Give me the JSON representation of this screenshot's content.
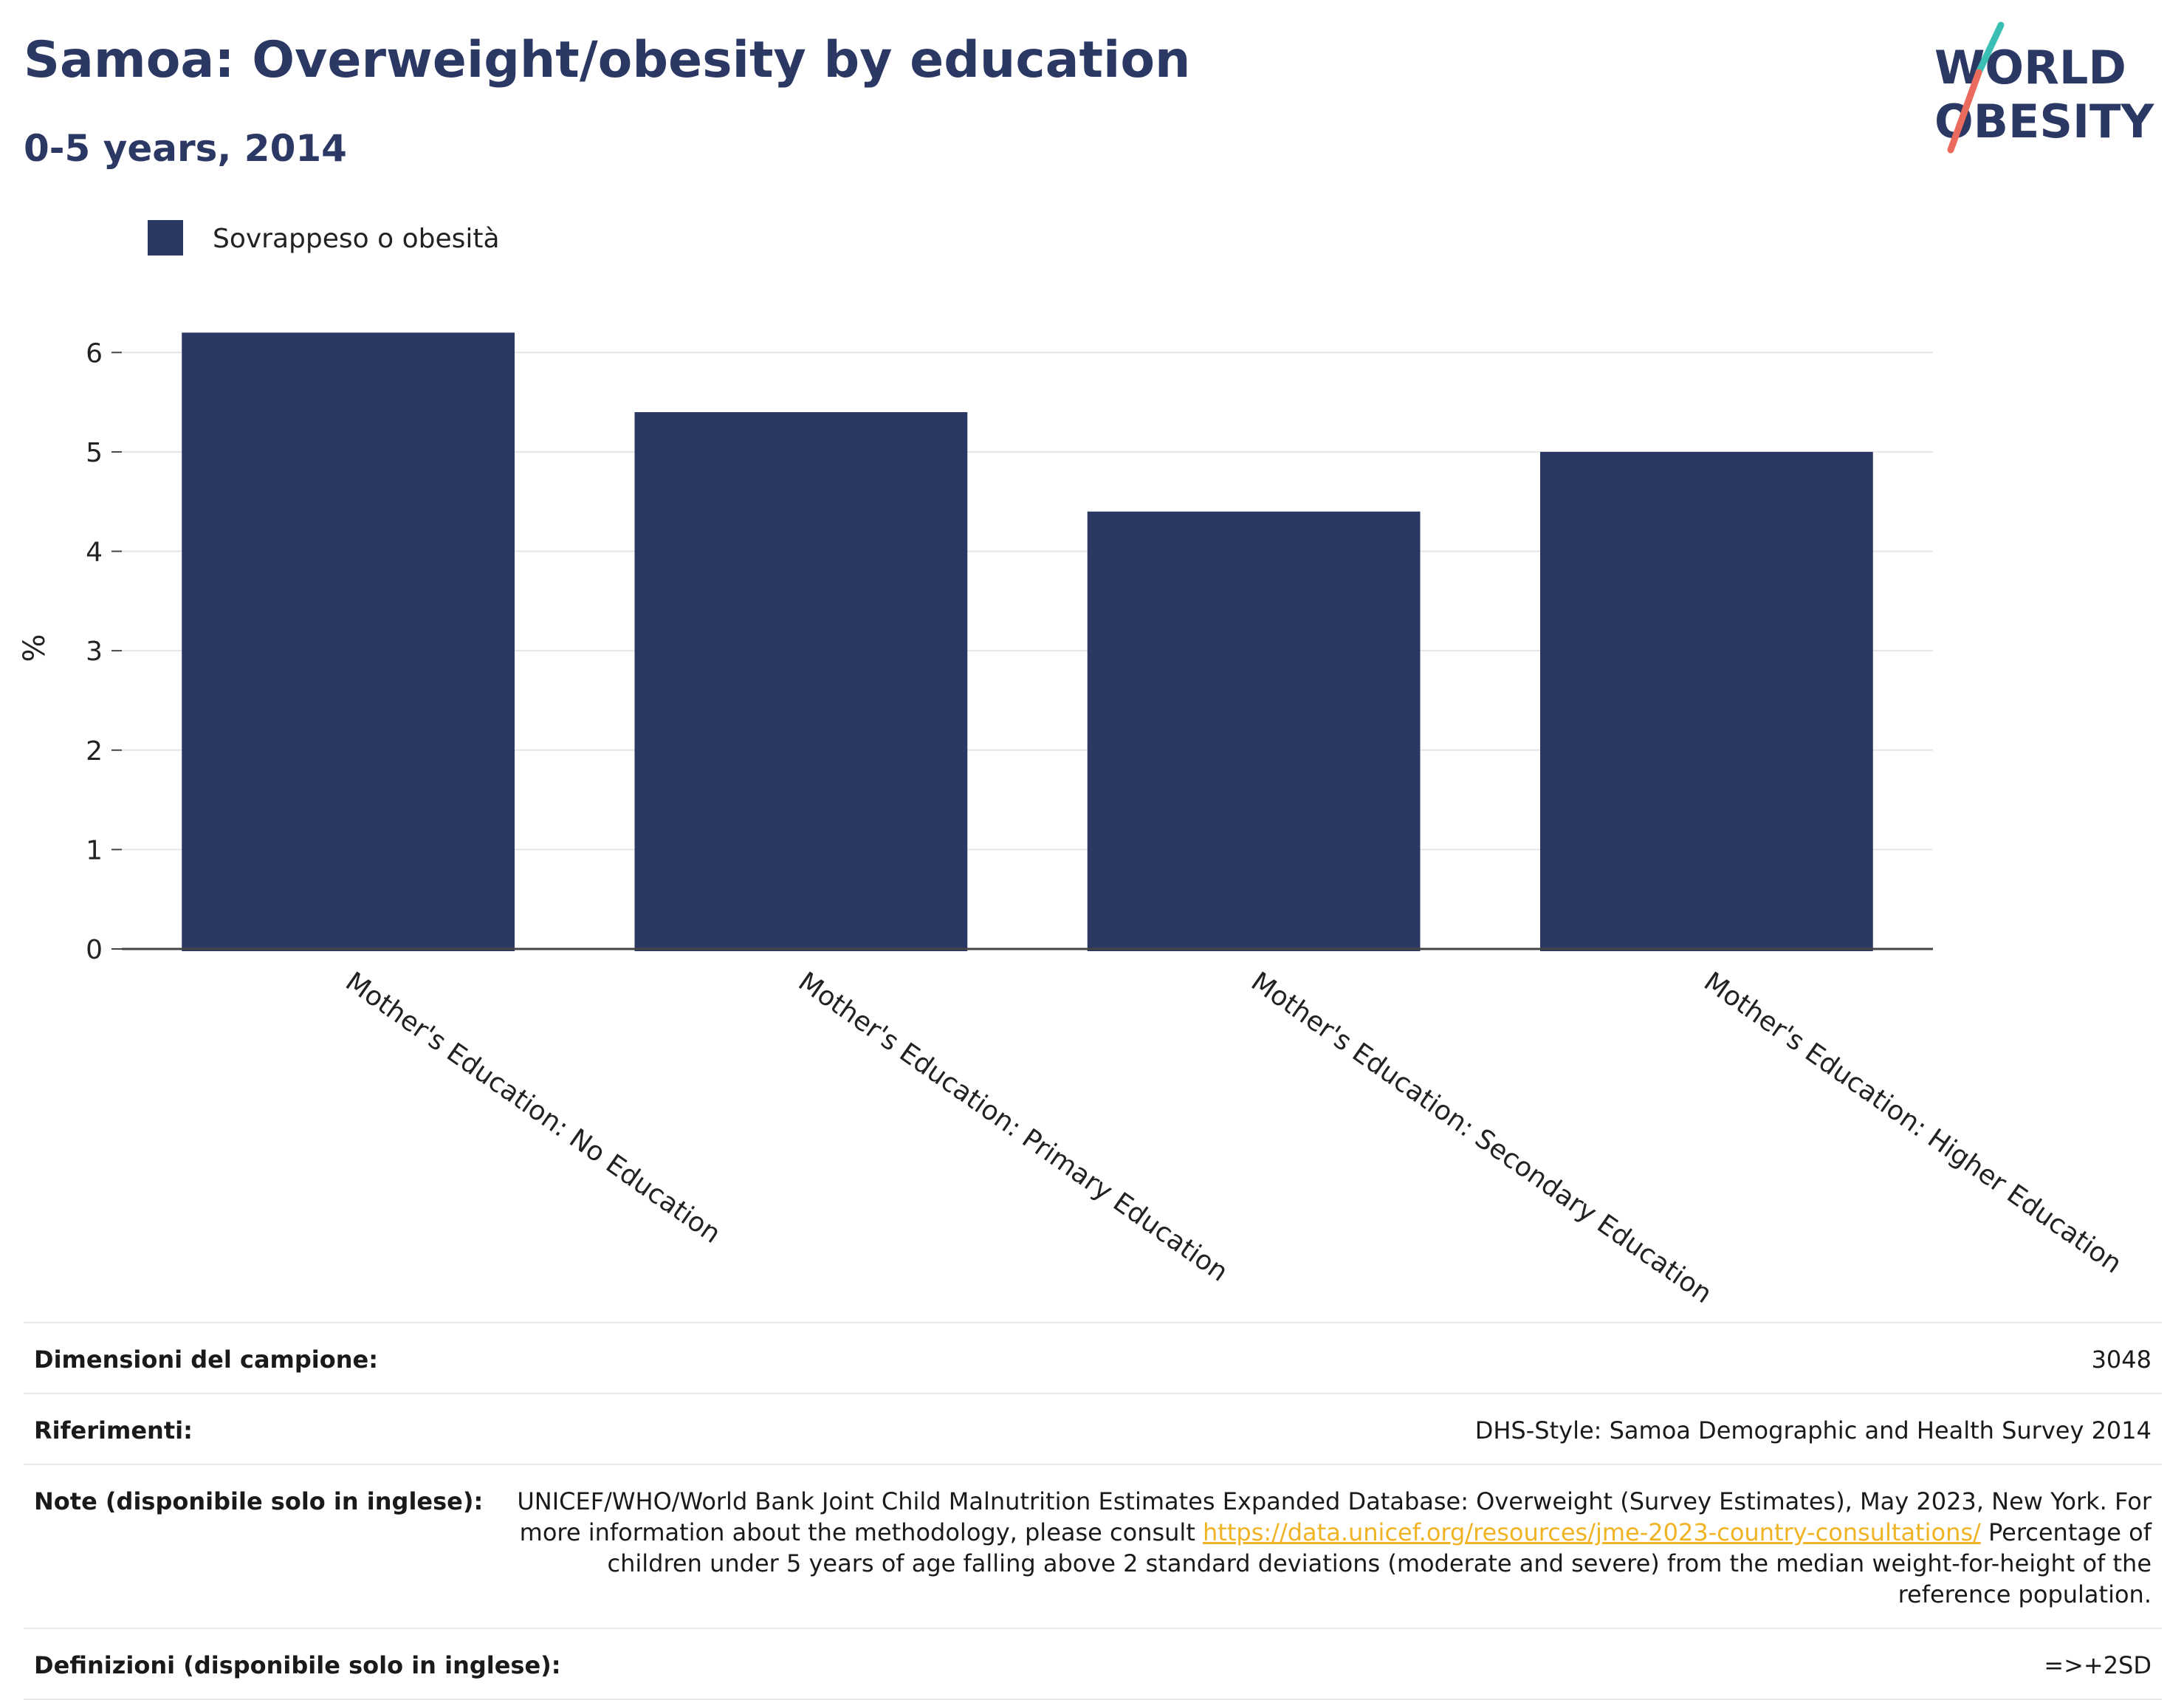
{
  "header": {
    "title": "Samoa: Overweight/obesity by education",
    "subtitle": "0-5 years, 2014"
  },
  "logo": {
    "text_line1": "WORLD",
    "text_line2": "OBESITY",
    "colors": {
      "text": "#2b3864",
      "slash_top": "#3bbfb4",
      "slash_bottom": "#ea6a5e"
    }
  },
  "colors": {
    "bar": "#2b3864",
    "grid": "#e6e6e6",
    "axis": "#444444",
    "link": "#f0b323"
  },
  "chart_data": {
    "type": "bar",
    "categories": [
      "Mother's Education: No Education",
      "Mother's Education: Primary Education",
      "Mother's Education: Secondary Education",
      "Mother's Education: Higher Education"
    ],
    "series": [
      {
        "name": "Sovrappeso o obesità",
        "values": [
          6.2,
          5.4,
          4.4,
          5.0
        ]
      }
    ],
    "title": "",
    "xlabel": "",
    "ylabel": "%",
    "ylim": [
      0,
      6.5
    ],
    "yticks": [
      0,
      1,
      2,
      3,
      4,
      5,
      6
    ],
    "grid": true,
    "legend_position": "top-left"
  },
  "info": [
    {
      "label": "Dimensioni del campione:",
      "value": "3048"
    },
    {
      "label": "Riferimenti:",
      "value": "DHS-Style: Samoa Demographic and Health Survey 2014"
    },
    {
      "label": "Note (disponibile solo in inglese):",
      "value_pre": "UNICEF/WHO/World Bank Joint Child Malnutrition Estimates Expanded Database: Overweight (Survey Estimates), May 2023, New York. For more information about the methodology, please consult ",
      "link": "https://data.unicef.org/resources/jme-2023-country-consultations/",
      "value_post": " Percentage of children under 5 years of age falling above 2 standard deviations (moderate and severe) from the median weight-for-height of the reference population."
    },
    {
      "label": "Definizioni (disponibile solo in inglese):",
      "value": "=>+2SD"
    }
  ]
}
